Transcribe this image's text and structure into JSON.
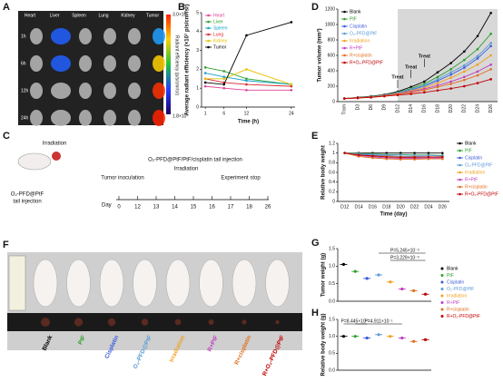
{
  "panel_labels": [
    "A",
    "B",
    "C",
    "D",
    "E",
    "F",
    "G",
    "H"
  ],
  "panel_a": {
    "columns": [
      "Heart",
      "Liver",
      "Spleen",
      "Lung",
      "Kidney",
      "Tumor"
    ],
    "rows": [
      "1h",
      "6h",
      "12h",
      "24h"
    ],
    "colorbar_max": "3.0×10⁷",
    "colorbar_min": "1.8×10⁷",
    "colorbar_label": "Radiant efficiency (p/s/cm²/sr)"
  },
  "panel_c": {
    "irradiation_top": "Irradiation",
    "first_injection": "O₂-PFD@PtF",
    "first_injection_2": "tail injection",
    "treat_injection": "O₂-PFD@PtF/PtF/cisplatin tail injection",
    "irradiation": "Irradiation",
    "inoculation": "Tumor inoculation",
    "stop": "Experiment stop",
    "day_label": "Day",
    "days": [
      "0",
      "12",
      "13",
      "14",
      "15",
      "16",
      "17",
      "18",
      "26"
    ]
  },
  "panel_f": {
    "labels": [
      "Blank",
      "PtF",
      "Cisplatin",
      "O₂-PFD@PtF",
      "Irradiation",
      "R+PtF",
      "R+cisplatin",
      "R+O₂-PFD@PtF"
    ],
    "colors": [
      "#000000",
      "#2ca02c",
      "#3b5bdb",
      "#5b9bd5",
      "#f0a020",
      "#c040c0",
      "#e07020",
      "#c00000"
    ]
  },
  "chart_data": [
    {
      "type": "line",
      "xlabel": "Time (h)",
      "ylabel": "Average radiant efficiency (×10⁷ p/s/cm²/sr)",
      "x": [
        1,
        6,
        12,
        24
      ],
      "xlim": [
        0,
        25
      ],
      "xticks": [
        1,
        6,
        12,
        24
      ],
      "ylim": [
        0,
        5
      ],
      "yticks": [
        0,
        1,
        2,
        3,
        4,
        5
      ],
      "legend": "upper left",
      "series": [
        {
          "name": "Heart",
          "color": "#e0409a",
          "values": [
            1.1,
            1.0,
            0.9,
            0.9
          ]
        },
        {
          "name": "Liver",
          "color": "#2ca02c",
          "values": [
            2.1,
            1.9,
            1.5,
            1.2
          ]
        },
        {
          "name": "Spleen",
          "color": "#17a2c8",
          "values": [
            1.8,
            1.6,
            1.4,
            1.2
          ]
        },
        {
          "name": "Lung",
          "color": "#d62728",
          "values": [
            1.5,
            1.3,
            1.2,
            1.1
          ]
        },
        {
          "name": "Kidney",
          "color": "#e6c200",
          "values": [
            1.5,
            1.5,
            2.0,
            1.2
          ]
        },
        {
          "name": "Tumor",
          "color": "#000000",
          "values": [
            1.3,
            1.2,
            3.8,
            4.5
          ]
        }
      ]
    },
    {
      "type": "line",
      "ylabel": "Tumor volume (mm³)",
      "categories": [
        "Tram",
        "D3",
        "D6",
        "D9",
        "D12",
        "D14",
        "D16",
        "D18",
        "D20",
        "D22",
        "D24",
        "D26"
      ],
      "ylim": [
        0,
        1200
      ],
      "yticks": [
        0,
        200,
        400,
        600,
        800,
        1000,
        1200
      ],
      "legend": "upper left",
      "annotations": [
        "Treat",
        "Treat",
        "Treat"
      ],
      "series": [
        {
          "name": "Blank",
          "color": "#000000",
          "values": [
            40,
            55,
            70,
            90,
            130,
            190,
            260,
            380,
            500,
            650,
            850,
            1150
          ]
        },
        {
          "name": "PtF",
          "color": "#2ca02c",
          "values": [
            40,
            50,
            65,
            85,
            120,
            170,
            230,
            320,
            420,
            540,
            680,
            880
          ]
        },
        {
          "name": "Cisplatin",
          "color": "#3b5bdb",
          "values": [
            40,
            50,
            60,
            80,
            110,
            150,
            200,
            270,
            350,
            440,
            560,
            720
          ]
        },
        {
          "name": "O₂-PFD@PtF",
          "color": "#5b9bd5",
          "values": [
            40,
            50,
            62,
            82,
            115,
            160,
            210,
            290,
            380,
            470,
            590,
            760
          ]
        },
        {
          "name": "Irradiation",
          "color": "#f0a020",
          "values": [
            40,
            50,
            60,
            78,
            105,
            140,
            180,
            240,
            310,
            390,
            480,
            600
          ]
        },
        {
          "name": "R+PtF",
          "color": "#c040c0",
          "values": [
            40,
            48,
            58,
            75,
            100,
            130,
            165,
            210,
            260,
            320,
            390,
            480
          ]
        },
        {
          "name": "R+cisplatin",
          "color": "#e07020",
          "values": [
            40,
            48,
            57,
            72,
            95,
            120,
            150,
            190,
            230,
            280,
            340,
            420
          ]
        },
        {
          "name": "R+O₂-PFD@PtF",
          "color": "#c00000",
          "values": [
            40,
            46,
            55,
            70,
            85,
            100,
            120,
            145,
            170,
            200,
            240,
            290
          ]
        }
      ]
    },
    {
      "type": "line",
      "xlabel": "Time (day)",
      "ylabel": "Relative body weight",
      "categories": [
        "D12",
        "D14",
        "D16",
        "D18",
        "D20",
        "D22",
        "D24",
        "D26"
      ],
      "ylim": [
        0,
        1.2
      ],
      "yticks": [
        0.0,
        0.2,
        0.4,
        0.6,
        0.8,
        1.0,
        1.2
      ],
      "legend": "right",
      "series": [
        {
          "name": "Blank",
          "color": "#000000",
          "values": [
            1.0,
            1.0,
            1.0,
            1.0,
            1.0,
            1.0,
            1.0,
            1.0
          ]
        },
        {
          "name": "PtF",
          "color": "#2ca02c",
          "values": [
            1.0,
            0.99,
            0.98,
            0.97,
            0.97,
            0.96,
            0.96,
            0.95
          ]
        },
        {
          "name": "Cisplatin",
          "color": "#3b5bdb",
          "values": [
            1.0,
            0.97,
            0.95,
            0.94,
            0.93,
            0.93,
            0.92,
            0.92
          ]
        },
        {
          "name": "O₂-PFD@PtF",
          "color": "#5b9bd5",
          "values": [
            1.0,
            0.98,
            0.97,
            0.96,
            0.96,
            0.95,
            0.95,
            0.94
          ]
        },
        {
          "name": "Irradiation",
          "color": "#f0a020",
          "values": [
            1.0,
            0.96,
            0.94,
            0.93,
            0.92,
            0.92,
            0.91,
            0.91
          ]
        },
        {
          "name": "R+PtF",
          "color": "#c040c0",
          "values": [
            1.0,
            0.95,
            0.92,
            0.9,
            0.89,
            0.89,
            0.9,
            0.9
          ]
        },
        {
          "name": "R+cisplatin",
          "color": "#e07020",
          "values": [
            1.0,
            0.93,
            0.9,
            0.88,
            0.87,
            0.87,
            0.88,
            0.88
          ]
        },
        {
          "name": "R+O₂-PFD@PtF",
          "color": "#c00000",
          "values": [
            1.0,
            0.96,
            0.94,
            0.92,
            0.91,
            0.91,
            0.92,
            0.92
          ]
        }
      ]
    },
    {
      "type": "dot",
      "ylabel": "Tumor weight (g)",
      "categories": [
        "Blank",
        "PtF",
        "Cisplatin",
        "O₂-PFD@PtF",
        "Irradiation",
        "R+PtF",
        "R+cisplatin",
        "R+O₂-PFD@PtF"
      ],
      "values": [
        1.05,
        0.85,
        0.65,
        0.75,
        0.55,
        0.35,
        0.3,
        0.2
      ],
      "colors": [
        "#000000",
        "#2ca02c",
        "#3b5bdb",
        "#5b9bd5",
        "#f0a020",
        "#c040c0",
        "#e07020",
        "#c00000"
      ],
      "ylim": [
        0,
        1.5
      ],
      "yticks": [
        {
          "value": 0,
          "label": "0.0"
        },
        {
          "value": 0.5,
          "label": "0.5"
        },
        {
          "value": 1,
          "label": "1.0"
        },
        {
          "value": 1.5,
          "label": "1.5"
        }
      ],
      "legend": "right",
      "annotations": [
        "P=5.245×10⁻³",
        "P=3.229×10⁻³"
      ]
    },
    {
      "type": "dot",
      "ylabel": "Relative body weight (g)",
      "values": [
        1.0,
        1.0,
        0.95,
        1.05,
        1.0,
        0.95,
        0.85,
        0.9
      ],
      "colors": [
        "#000000",
        "#2ca02c",
        "#3b5bdb",
        "#5b9bd5",
        "#f0a020",
        "#c040c0",
        "#e07020",
        "#c00000"
      ],
      "ylim": [
        0,
        1.5
      ],
      "yticks": [
        {
          "value": 0,
          "label": "0.0"
        },
        {
          "value": 0.5,
          "label": "0.5"
        },
        {
          "value": 1,
          "label": "1.0"
        },
        {
          "value": 1.5,
          "label": "1.5"
        }
      ],
      "annotations": [
        "P=8.445×10⁻¹",
        "P=4.911×10⁻¹"
      ]
    }
  ]
}
